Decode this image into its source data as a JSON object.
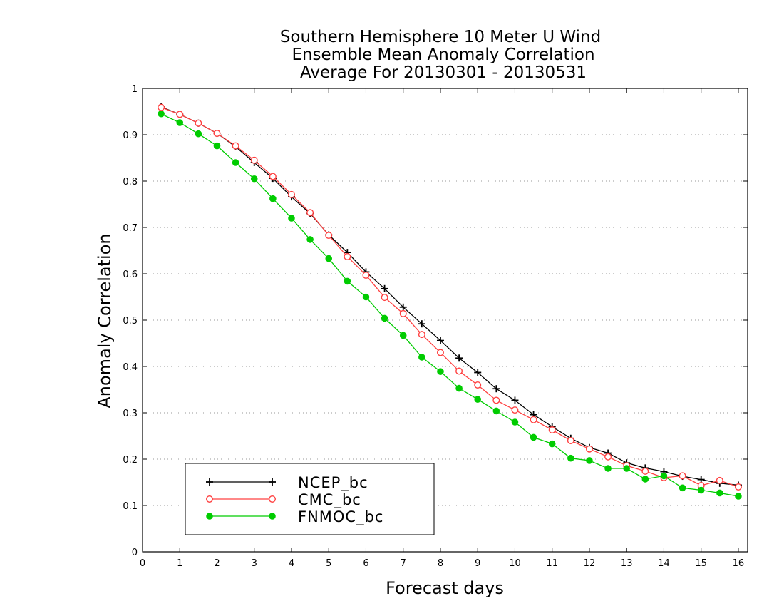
{
  "chart_data": {
    "type": "line",
    "title": [
      "Southern Hemisphere 10 Meter U Wind",
      "Ensemble Mean Anomaly Correlation",
      "Average For 20130301 - 20130531"
    ],
    "xlabel": "Forecast days",
    "ylabel": "Anomaly Correlation",
    "xlim": [
      0,
      16.25
    ],
    "ylim": [
      0,
      1
    ],
    "xticks": [
      0,
      1,
      2,
      3,
      4,
      5,
      6,
      7,
      8,
      9,
      10,
      11,
      12,
      13,
      14,
      15,
      16
    ],
    "yticks": [
      0,
      0.1,
      0.2,
      0.3,
      0.4,
      0.5,
      0.6,
      0.7,
      0.8,
      0.9,
      1
    ],
    "ytick_labels": [
      "0",
      "0.1",
      "0.2",
      "0.3",
      "0.4",
      "0.5",
      "0.6",
      "0.7",
      "0.8",
      "0.9",
      "1"
    ],
    "grid": "horizontal dotted",
    "legend_position": "bottom-left",
    "x": [
      0.5,
      1,
      1.5,
      2,
      2.5,
      3,
      3.5,
      4,
      4.5,
      5,
      5.5,
      6,
      6.5,
      7,
      7.5,
      8,
      8.5,
      9,
      9.5,
      10,
      10.5,
      11,
      11.5,
      12,
      12.5,
      13,
      13.5,
      14,
      14.5,
      15,
      15.5,
      16
    ],
    "series": [
      {
        "name": "NCEP_bc",
        "color": "#000000",
        "marker": "plus",
        "values": [
          0.96,
          0.944,
          0.925,
          0.903,
          0.874,
          0.84,
          0.806,
          0.766,
          0.73,
          0.684,
          0.646,
          0.604,
          0.568,
          0.528,
          0.492,
          0.456,
          0.418,
          0.387,
          0.352,
          0.327,
          0.296,
          0.27,
          0.245,
          0.225,
          0.213,
          0.192,
          0.181,
          0.173,
          0.163,
          0.156,
          0.148,
          0.144
        ]
      },
      {
        "name": "CMC_bc",
        "color": "#ff4040",
        "marker": "open-circle",
        "values": [
          0.959,
          0.944,
          0.925,
          0.903,
          0.876,
          0.845,
          0.81,
          0.771,
          0.732,
          0.683,
          0.637,
          0.597,
          0.549,
          0.514,
          0.469,
          0.43,
          0.39,
          0.36,
          0.327,
          0.306,
          0.285,
          0.263,
          0.24,
          0.222,
          0.205,
          0.186,
          0.174,
          0.16,
          0.164,
          0.143,
          0.154,
          0.14
        ]
      },
      {
        "name": "FNMOC_bc",
        "color": "#00cc00",
        "marker": "filled-circle",
        "values": [
          0.945,
          0.926,
          0.902,
          0.876,
          0.84,
          0.805,
          0.762,
          0.72,
          0.674,
          0.633,
          0.584,
          0.55,
          0.504,
          0.467,
          0.42,
          0.389,
          0.353,
          0.329,
          0.304,
          0.28,
          0.247,
          0.233,
          0.202,
          0.197,
          0.18,
          0.18,
          0.157,
          0.164,
          0.138,
          0.133,
          0.127,
          0.12
        ]
      }
    ]
  }
}
